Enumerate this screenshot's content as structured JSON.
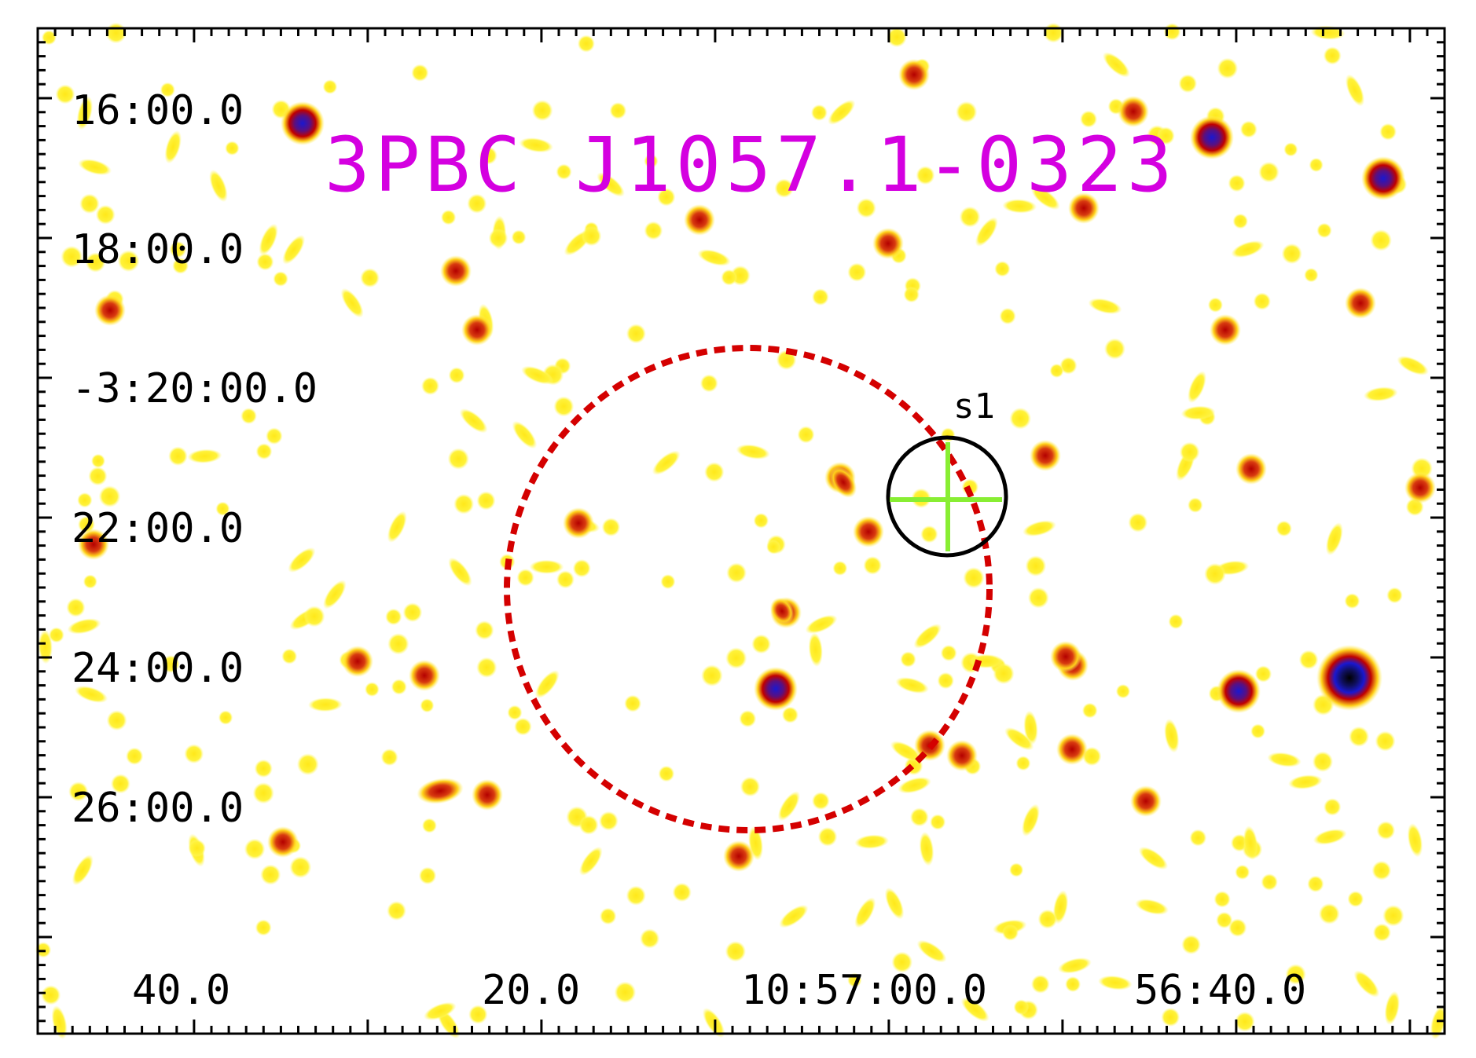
{
  "title": "3PBC J1057.1-0323",
  "source_label": "s1",
  "colors": {
    "title": "#d400e0",
    "error_circle": "#d40000",
    "source_circle": "#000000",
    "crosshair": "#88ee33",
    "background": "#ffffff",
    "colormap": [
      "#ffff33",
      "#e0b000",
      "#c40000",
      "#1a18c8",
      "#000000"
    ]
  },
  "axes": {
    "dec_labels": [
      "16:00.0",
      "18:00.0",
      "-3:20:00.0",
      "22:00.0",
      "24:00.0",
      "26:00.0"
    ],
    "ra_labels": [
      "40.0",
      "20.0",
      "10:57:00.0",
      "56:40.0"
    ]
  }
}
